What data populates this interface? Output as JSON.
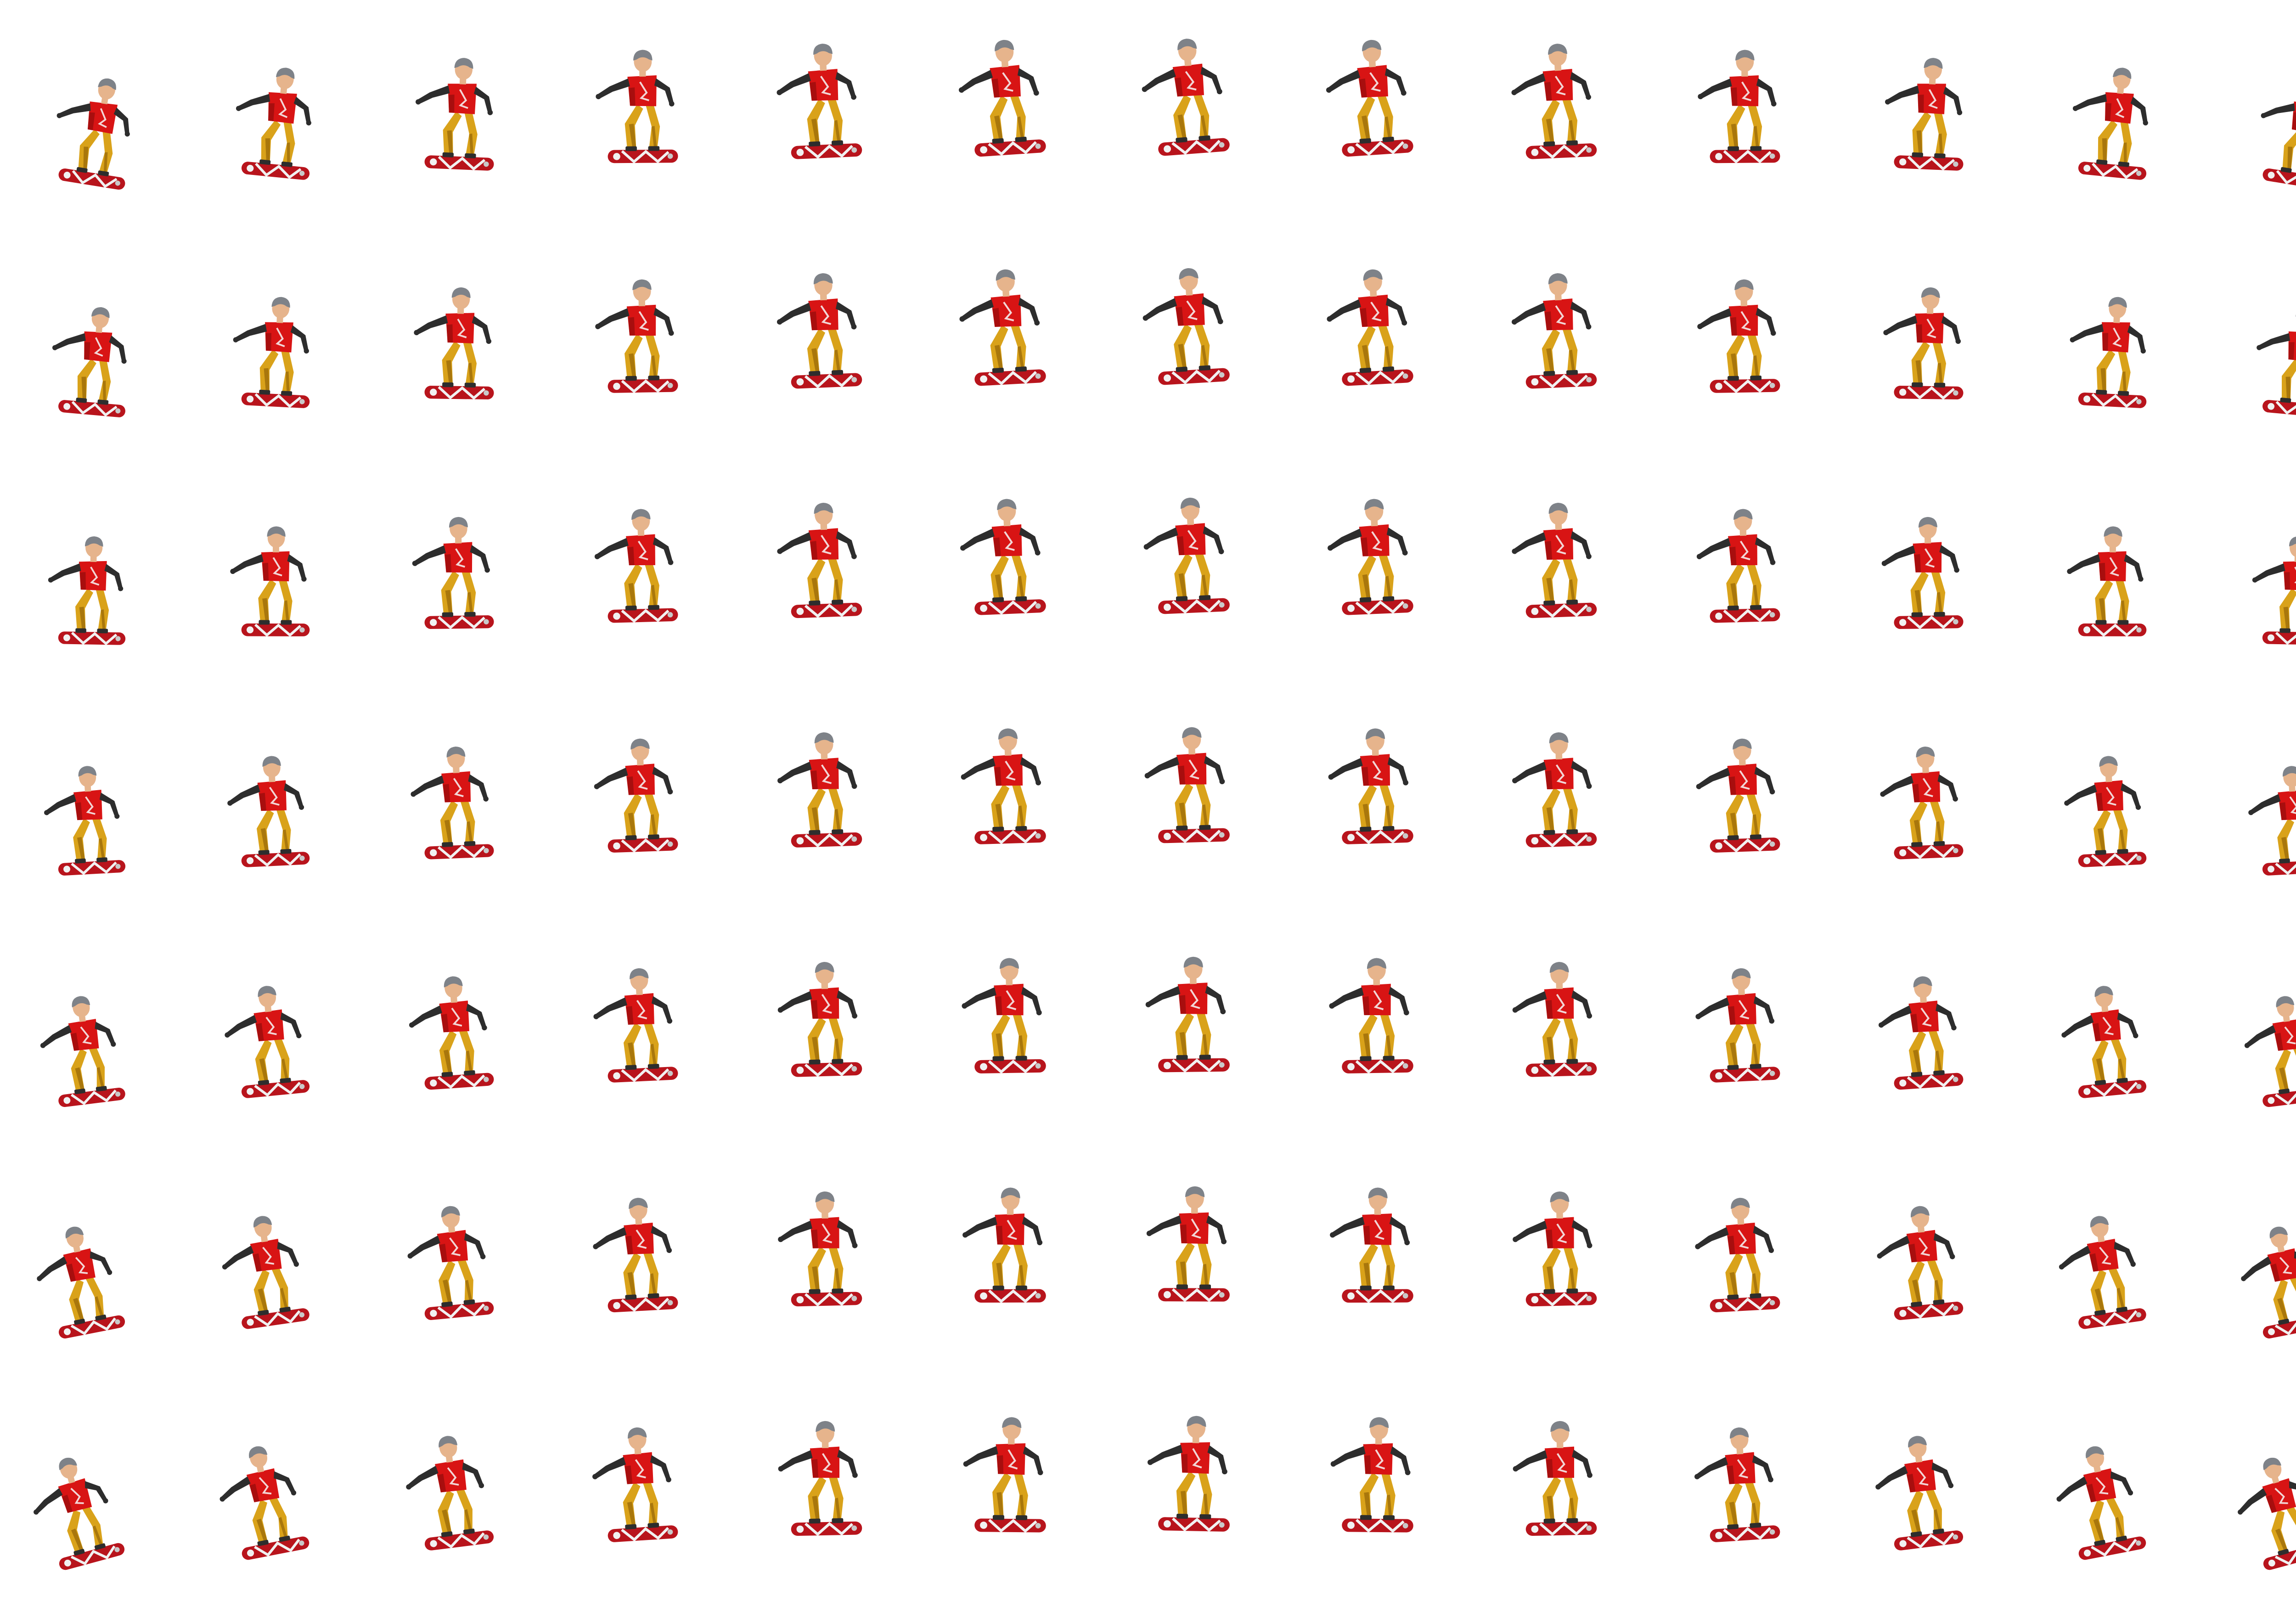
{
  "sheet": {
    "kind": "sprite-sheet",
    "subject": "snowboarder",
    "rows": 7,
    "columns": 13,
    "frame_count": 91,
    "background_color": "#ffffff"
  },
  "palette": {
    "shirt": "#d81414",
    "shirt_dark": "#a80e0e",
    "shirt_print": "#f2d6d6",
    "pants": "#d9a21a",
    "pants_shadow": "#a9770c",
    "sleeves": "#2d2d2d",
    "helmet": "#7e8288",
    "skin": "#e6b48c",
    "board_red": "#b8141c",
    "board_white": "#f1f1f1",
    "board_grey": "#c9c9c9"
  }
}
